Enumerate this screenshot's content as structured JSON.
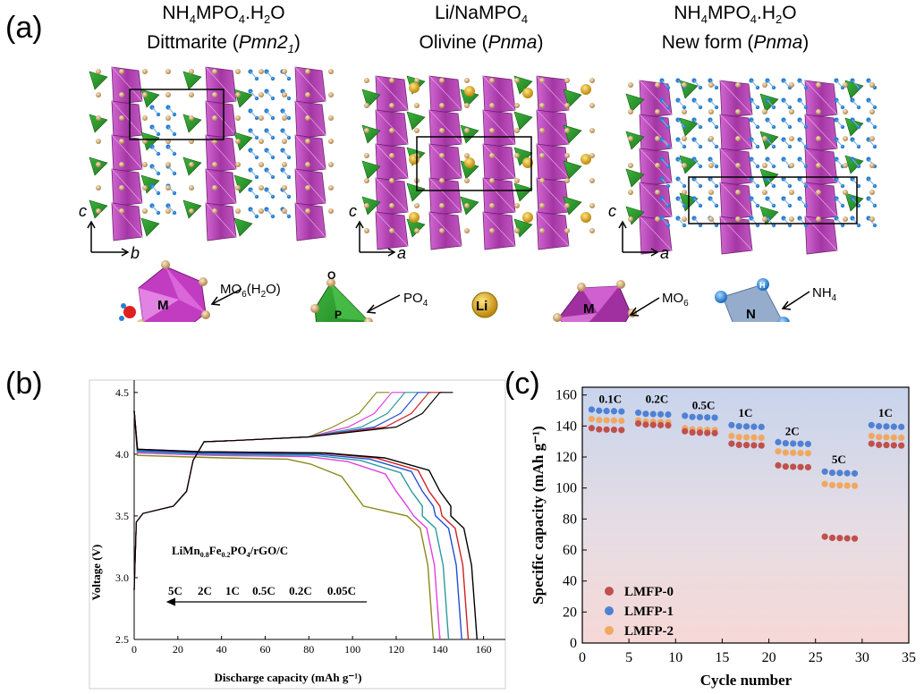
{
  "panel_labels": {
    "a": "(a)",
    "b": "(b)",
    "c": "(c)"
  },
  "structures": [
    {
      "line1_parts": [
        "NH",
        "4",
        "MPO",
        "4",
        ".H",
        "2",
        "O"
      ],
      "line2": "Dittmarite (",
      "line2_italic": "Pmn2",
      "line2_sub": "1",
      "line2_end": ")",
      "axis_v": "c",
      "axis_h": "b"
    },
    {
      "line1_parts": [
        "Li/NaMPO",
        "4",
        "",
        "",
        "",
        "",
        ""
      ],
      "line2": "Olivine (",
      "line2_italic": "Pnma",
      "line2_sub": "",
      "line2_end": ")",
      "axis_v": "c",
      "axis_h": "a"
    },
    {
      "line1_parts": [
        "NH",
        "4",
        "MPO",
        "4",
        ".H",
        "2",
        "O"
      ],
      "line2": "New form (",
      "line2_italic": "Pnma",
      "line2_sub": "",
      "line2_end": ")",
      "axis_v": "c",
      "axis_h": "a"
    }
  ],
  "legend_polyhedra": {
    "mo6h2o": {
      "label": "MO",
      "sub": "6",
      "tail": "(H",
      "sub2": "2",
      "end": "O)",
      "center": "M"
    },
    "po4": {
      "label": "PO",
      "sub": "4",
      "center": "P",
      "vertex": "O"
    },
    "li": {
      "label": "Li"
    },
    "mo6": {
      "label": "MO",
      "sub": "6",
      "center": "M"
    },
    "nh4": {
      "label": "NH",
      "sub": "4",
      "center": "N",
      "vertex": "H"
    }
  },
  "colors": {
    "octahedra": "#b43cb4",
    "tetrahedra": "#2e9e2e",
    "li_atom": "#d4a017",
    "nh4": "#3a8fd6",
    "lmfp0": "#c0504d",
    "lmfp1": "#4f81d4",
    "lmfp2": "#f0a860"
  },
  "chart_data": [
    {
      "type": "line",
      "panel": "(b)",
      "xlabel": "Discharge capacity (mAh g-1)",
      "ylabel": "Voltage (V)",
      "xlim": [
        0,
        170
      ],
      "ylim": [
        2.5,
        4.6
      ],
      "x_ticks": [
        "0",
        "20",
        "40",
        "60",
        "80",
        "100",
        "120",
        "140",
        "160"
      ],
      "y_ticks": [
        "2.5",
        "3.0",
        "3.5",
        "4.0",
        "4.5"
      ],
      "annotation": {
        "material_parts": [
          "LiMn",
          "0.8",
          "Fe",
          "0.2",
          "PO",
          "4",
          "/rGO/C"
        ],
        "rates": [
          "5C",
          "2C",
          "1C",
          "0.5C",
          "0.2C",
          "0.05C"
        ]
      },
      "series": [
        {
          "rate": "5C",
          "color": "#8a8a1a",
          "capacity": 137,
          "charge_capacity": 111,
          "plateau_v": 3.97,
          "mn_start": 40,
          "mn_end": 95
        },
        {
          "rate": "2C",
          "color": "#e040e0",
          "capacity": 140,
          "charge_capacity": 118,
          "plateau_v": 3.99,
          "mn_start": 36,
          "mn_end": 115
        },
        {
          "rate": "1C",
          "color": "#2a9a9a",
          "capacity": 144,
          "charge_capacity": 124,
          "plateau_v": 4.0,
          "mn_start": 34,
          "mn_end": 122
        },
        {
          "rate": "0.5C",
          "color": "#2050d0",
          "capacity": 150,
          "charge_capacity": 130,
          "plateau_v": 4.01,
          "mn_start": 32,
          "mn_end": 127
        },
        {
          "rate": "0.2C",
          "color": "#d02020",
          "capacity": 153,
          "charge_capacity": 135,
          "plateau_v": 4.02,
          "mn_start": 31,
          "mn_end": 130
        },
        {
          "rate": "0.05C",
          "color": "#000000",
          "capacity": 157,
          "charge_capacity": 140,
          "plateau_v": 4.02,
          "mn_start": 30,
          "mn_end": 135
        }
      ]
    },
    {
      "type": "scatter",
      "panel": "(c)",
      "xlabel": "Cycle number",
      "ylabel": "Specific capacity (mAh g-1)",
      "xlim": [
        0,
        35
      ],
      "ylim": [
        0,
        165
      ],
      "x_ticks": [
        "0",
        "5",
        "10",
        "15",
        "20",
        "25",
        "30",
        "35"
      ],
      "y_ticks": [
        "0",
        "20",
        "40",
        "60",
        "80",
        "100",
        "120",
        "140",
        "160"
      ],
      "rate_labels": [
        {
          "text": "0.1C",
          "x": 3,
          "y": 155
        },
        {
          "text": "0.2C",
          "x": 8,
          "y": 155
        },
        {
          "text": "0.5C",
          "x": 13,
          "y": 151
        },
        {
          "text": "1C",
          "x": 17.5,
          "y": 146
        },
        {
          "text": "2C",
          "x": 22.5,
          "y": 134
        },
        {
          "text": "5C",
          "x": 27.5,
          "y": 116
        },
        {
          "text": "1C",
          "x": 32.5,
          "y": 146
        }
      ],
      "groups": [
        {
          "x_start": 1,
          "LMFP-0": 138,
          "LMFP-1": 150,
          "LMFP-2": 144
        },
        {
          "x_start": 6,
          "LMFP-0": 141,
          "LMFP-1": 148,
          "LMFP-2": 143
        },
        {
          "x_start": 11,
          "LMFP-0": 136,
          "LMFP-1": 146,
          "LMFP-2": 138
        },
        {
          "x_start": 16,
          "LMFP-0": 128,
          "LMFP-1": 140,
          "LMFP-2": 133
        },
        {
          "x_start": 21,
          "LMFP-0": 114,
          "LMFP-1": 129,
          "LMFP-2": 123
        },
        {
          "x_start": 26,
          "LMFP-0": 68,
          "LMFP-1": 110,
          "LMFP-2": 102
        },
        {
          "x_start": 31,
          "LMFP-0": 128,
          "LMFP-1": 140,
          "LMFP-2": 133
        }
      ],
      "legend": [
        "LMFP-0",
        "LMFP-1",
        "LMFP-2"
      ],
      "legend_position": "bottom-left"
    }
  ]
}
